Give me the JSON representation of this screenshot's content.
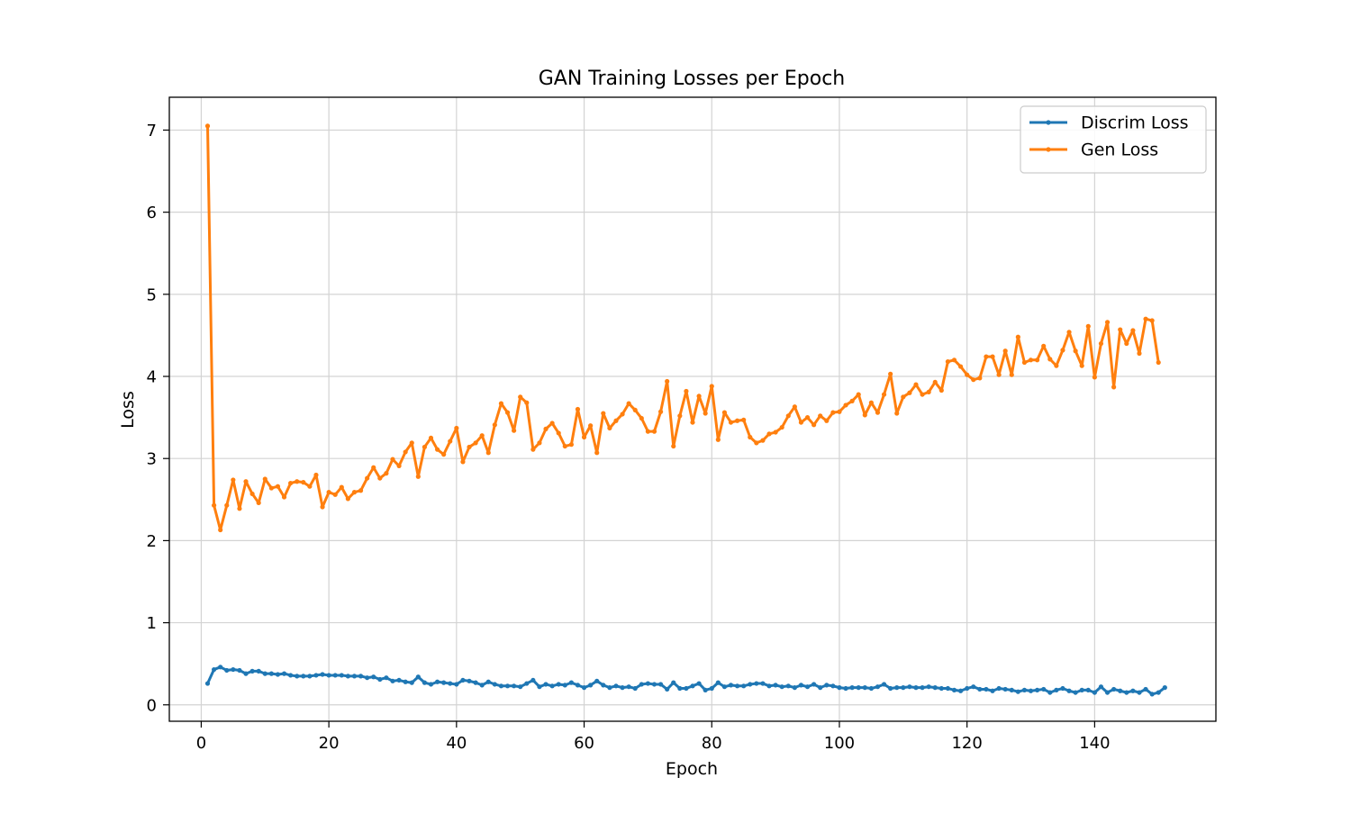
{
  "chart_data": {
    "type": "line",
    "title": "GAN Training Losses per Epoch",
    "xlabel": "Epoch",
    "ylabel": "Loss",
    "xlim": [
      -5,
      159
    ],
    "ylim": [
      -0.2,
      7.4
    ],
    "xticks": [
      0,
      20,
      40,
      60,
      80,
      100,
      120,
      140
    ],
    "yticks": [
      0,
      1,
      2,
      3,
      4,
      5,
      6,
      7
    ],
    "grid": true,
    "legend": "top-right",
    "x_start": 1,
    "series": [
      {
        "name": "Discrim Loss",
        "color": "#1f77b4",
        "values": [
          0.26,
          0.43,
          0.46,
          0.42,
          0.43,
          0.42,
          0.38,
          0.41,
          0.41,
          0.38,
          0.38,
          0.37,
          0.38,
          0.36,
          0.35,
          0.35,
          0.35,
          0.36,
          0.37,
          0.36,
          0.36,
          0.36,
          0.35,
          0.35,
          0.35,
          0.33,
          0.34,
          0.31,
          0.33,
          0.29,
          0.3,
          0.28,
          0.27,
          0.34,
          0.27,
          0.25,
          0.28,
          0.27,
          0.26,
          0.25,
          0.3,
          0.29,
          0.27,
          0.24,
          0.28,
          0.25,
          0.23,
          0.23,
          0.23,
          0.22,
          0.26,
          0.3,
          0.22,
          0.25,
          0.23,
          0.25,
          0.24,
          0.27,
          0.24,
          0.21,
          0.24,
          0.29,
          0.24,
          0.21,
          0.23,
          0.21,
          0.22,
          0.2,
          0.25,
          0.26,
          0.25,
          0.25,
          0.19,
          0.27,
          0.2,
          0.2,
          0.23,
          0.26,
          0.18,
          0.2,
          0.27,
          0.22,
          0.24,
          0.23,
          0.23,
          0.25,
          0.26,
          0.26,
          0.23,
          0.24,
          0.22,
          0.23,
          0.21,
          0.24,
          0.22,
          0.25,
          0.21,
          0.24,
          0.23,
          0.21,
          0.2,
          0.21,
          0.21,
          0.21,
          0.2,
          0.22,
          0.25,
          0.2,
          0.21,
          0.21,
          0.22,
          0.21,
          0.21,
          0.22,
          0.21,
          0.2,
          0.2,
          0.18,
          0.17,
          0.2,
          0.22,
          0.19,
          0.19,
          0.17,
          0.2,
          0.19,
          0.18,
          0.16,
          0.18,
          0.17,
          0.18,
          0.19,
          0.15,
          0.18,
          0.2,
          0.17,
          0.15,
          0.18,
          0.18,
          0.15,
          0.22,
          0.15,
          0.19,
          0.17,
          0.15,
          0.17,
          0.15,
          0.19,
          0.13,
          0.15,
          0.21
        ]
      },
      {
        "name": "Gen Loss",
        "color": "#ff7f0e",
        "values": [
          7.05,
          2.43,
          2.13,
          2.43,
          2.74,
          2.39,
          2.72,
          2.57,
          2.46,
          2.75,
          2.64,
          2.66,
          2.53,
          2.7,
          2.72,
          2.71,
          2.66,
          2.8,
          2.41,
          2.59,
          2.56,
          2.65,
          2.51,
          2.59,
          2.61,
          2.76,
          2.89,
          2.76,
          2.82,
          2.99,
          2.91,
          3.08,
          3.19,
          2.78,
          3.14,
          3.25,
          3.11,
          3.05,
          3.21,
          3.37,
          2.96,
          3.14,
          3.19,
          3.28,
          3.07,
          3.41,
          3.67,
          3.56,
          3.34,
          3.75,
          3.68,
          3.11,
          3.19,
          3.36,
          3.43,
          3.31,
          3.15,
          3.17,
          3.6,
          3.26,
          3.4,
          3.07,
          3.55,
          3.37,
          3.46,
          3.54,
          3.67,
          3.59,
          3.49,
          3.33,
          3.33,
          3.57,
          3.94,
          3.15,
          3.52,
          3.82,
          3.44,
          3.76,
          3.55,
          3.88,
          3.23,
          3.56,
          3.44,
          3.46,
          3.47,
          3.26,
          3.19,
          3.22,
          3.3,
          3.32,
          3.38,
          3.52,
          3.63,
          3.44,
          3.5,
          3.41,
          3.52,
          3.46,
          3.56,
          3.57,
          3.65,
          3.7,
          3.78,
          3.53,
          3.68,
          3.56,
          3.78,
          4.03,
          3.55,
          3.75,
          3.8,
          3.9,
          3.78,
          3.81,
          3.93,
          3.83,
          4.18,
          4.2,
          4.12,
          4.02,
          3.96,
          3.98,
          4.24,
          4.24,
          4.02,
          4.31,
          4.02,
          4.48,
          4.17,
          4.2,
          4.2,
          4.37,
          4.21,
          4.13,
          4.32,
          4.54,
          4.31,
          4.13,
          4.61,
          3.99,
          4.4,
          4.66,
          3.87,
          4.57,
          4.4,
          4.56,
          4.28,
          4.7,
          4.68,
          4.17
        ]
      }
    ]
  }
}
